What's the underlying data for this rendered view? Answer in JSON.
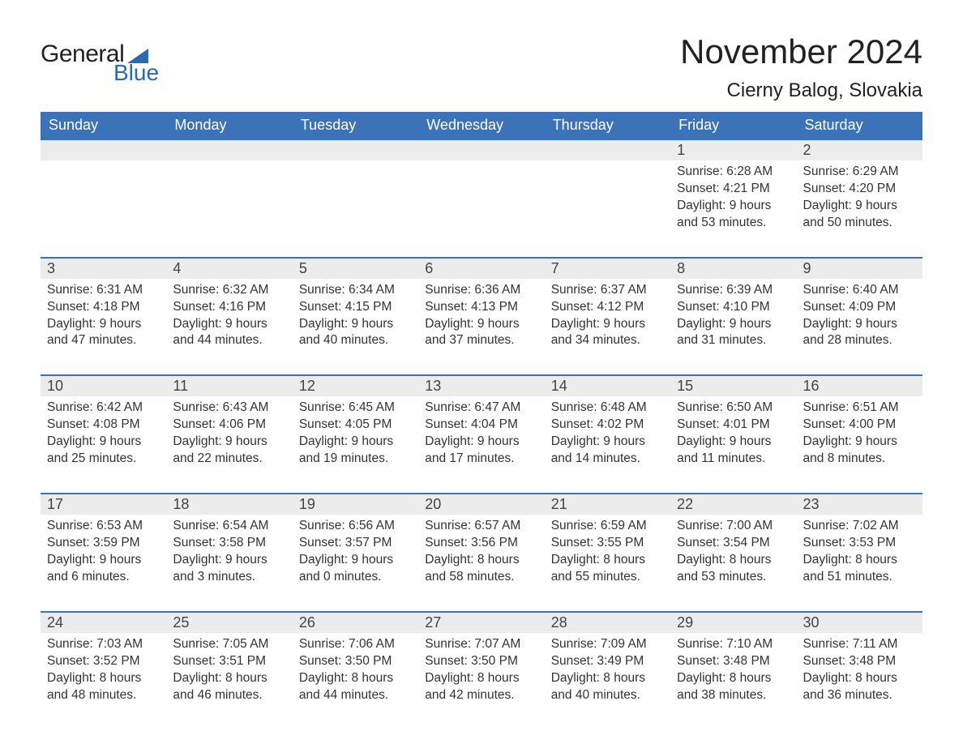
{
  "brand": {
    "part1": "General",
    "part2": "Blue",
    "flag_color": "#2b69b1"
  },
  "title": "November 2024",
  "location": "Cierny Balog, Slovakia",
  "colors": {
    "header_bg": "#3b72b8",
    "header_text": "#ffffff",
    "day_num_bg": "#ececec",
    "accent_border": "#3b72b8",
    "text": "#333333",
    "page_bg": "#ffffff"
  },
  "day_headers": [
    "Sunday",
    "Monday",
    "Tuesday",
    "Wednesday",
    "Thursday",
    "Friday",
    "Saturday"
  ],
  "weeks": [
    [
      null,
      null,
      null,
      null,
      null,
      {
        "n": "1",
        "sunrise": "Sunrise: 6:28 AM",
        "sunset": "Sunset: 4:21 PM",
        "d1": "Daylight: 9 hours",
        "d2": "and 53 minutes."
      },
      {
        "n": "2",
        "sunrise": "Sunrise: 6:29 AM",
        "sunset": "Sunset: 4:20 PM",
        "d1": "Daylight: 9 hours",
        "d2": "and 50 minutes."
      }
    ],
    [
      {
        "n": "3",
        "sunrise": "Sunrise: 6:31 AM",
        "sunset": "Sunset: 4:18 PM",
        "d1": "Daylight: 9 hours",
        "d2": "and 47 minutes."
      },
      {
        "n": "4",
        "sunrise": "Sunrise: 6:32 AM",
        "sunset": "Sunset: 4:16 PM",
        "d1": "Daylight: 9 hours",
        "d2": "and 44 minutes."
      },
      {
        "n": "5",
        "sunrise": "Sunrise: 6:34 AM",
        "sunset": "Sunset: 4:15 PM",
        "d1": "Daylight: 9 hours",
        "d2": "and 40 minutes."
      },
      {
        "n": "6",
        "sunrise": "Sunrise: 6:36 AM",
        "sunset": "Sunset: 4:13 PM",
        "d1": "Daylight: 9 hours",
        "d2": "and 37 minutes."
      },
      {
        "n": "7",
        "sunrise": "Sunrise: 6:37 AM",
        "sunset": "Sunset: 4:12 PM",
        "d1": "Daylight: 9 hours",
        "d2": "and 34 minutes."
      },
      {
        "n": "8",
        "sunrise": "Sunrise: 6:39 AM",
        "sunset": "Sunset: 4:10 PM",
        "d1": "Daylight: 9 hours",
        "d2": "and 31 minutes."
      },
      {
        "n": "9",
        "sunrise": "Sunrise: 6:40 AM",
        "sunset": "Sunset: 4:09 PM",
        "d1": "Daylight: 9 hours",
        "d2": "and 28 minutes."
      }
    ],
    [
      {
        "n": "10",
        "sunrise": "Sunrise: 6:42 AM",
        "sunset": "Sunset: 4:08 PM",
        "d1": "Daylight: 9 hours",
        "d2": "and 25 minutes."
      },
      {
        "n": "11",
        "sunrise": "Sunrise: 6:43 AM",
        "sunset": "Sunset: 4:06 PM",
        "d1": "Daylight: 9 hours",
        "d2": "and 22 minutes."
      },
      {
        "n": "12",
        "sunrise": "Sunrise: 6:45 AM",
        "sunset": "Sunset: 4:05 PM",
        "d1": "Daylight: 9 hours",
        "d2": "and 19 minutes."
      },
      {
        "n": "13",
        "sunrise": "Sunrise: 6:47 AM",
        "sunset": "Sunset: 4:04 PM",
        "d1": "Daylight: 9 hours",
        "d2": "and 17 minutes."
      },
      {
        "n": "14",
        "sunrise": "Sunrise: 6:48 AM",
        "sunset": "Sunset: 4:02 PM",
        "d1": "Daylight: 9 hours",
        "d2": "and 14 minutes."
      },
      {
        "n": "15",
        "sunrise": "Sunrise: 6:50 AM",
        "sunset": "Sunset: 4:01 PM",
        "d1": "Daylight: 9 hours",
        "d2": "and 11 minutes."
      },
      {
        "n": "16",
        "sunrise": "Sunrise: 6:51 AM",
        "sunset": "Sunset: 4:00 PM",
        "d1": "Daylight: 9 hours",
        "d2": "and 8 minutes."
      }
    ],
    [
      {
        "n": "17",
        "sunrise": "Sunrise: 6:53 AM",
        "sunset": "Sunset: 3:59 PM",
        "d1": "Daylight: 9 hours",
        "d2": "and 6 minutes."
      },
      {
        "n": "18",
        "sunrise": "Sunrise: 6:54 AM",
        "sunset": "Sunset: 3:58 PM",
        "d1": "Daylight: 9 hours",
        "d2": "and 3 minutes."
      },
      {
        "n": "19",
        "sunrise": "Sunrise: 6:56 AM",
        "sunset": "Sunset: 3:57 PM",
        "d1": "Daylight: 9 hours",
        "d2": "and 0 minutes."
      },
      {
        "n": "20",
        "sunrise": "Sunrise: 6:57 AM",
        "sunset": "Sunset: 3:56 PM",
        "d1": "Daylight: 8 hours",
        "d2": "and 58 minutes."
      },
      {
        "n": "21",
        "sunrise": "Sunrise: 6:59 AM",
        "sunset": "Sunset: 3:55 PM",
        "d1": "Daylight: 8 hours",
        "d2": "and 55 minutes."
      },
      {
        "n": "22",
        "sunrise": "Sunrise: 7:00 AM",
        "sunset": "Sunset: 3:54 PM",
        "d1": "Daylight: 8 hours",
        "d2": "and 53 minutes."
      },
      {
        "n": "23",
        "sunrise": "Sunrise: 7:02 AM",
        "sunset": "Sunset: 3:53 PM",
        "d1": "Daylight: 8 hours",
        "d2": "and 51 minutes."
      }
    ],
    [
      {
        "n": "24",
        "sunrise": "Sunrise: 7:03 AM",
        "sunset": "Sunset: 3:52 PM",
        "d1": "Daylight: 8 hours",
        "d2": "and 48 minutes."
      },
      {
        "n": "25",
        "sunrise": "Sunrise: 7:05 AM",
        "sunset": "Sunset: 3:51 PM",
        "d1": "Daylight: 8 hours",
        "d2": "and 46 minutes."
      },
      {
        "n": "26",
        "sunrise": "Sunrise: 7:06 AM",
        "sunset": "Sunset: 3:50 PM",
        "d1": "Daylight: 8 hours",
        "d2": "and 44 minutes."
      },
      {
        "n": "27",
        "sunrise": "Sunrise: 7:07 AM",
        "sunset": "Sunset: 3:50 PM",
        "d1": "Daylight: 8 hours",
        "d2": "and 42 minutes."
      },
      {
        "n": "28",
        "sunrise": "Sunrise: 7:09 AM",
        "sunset": "Sunset: 3:49 PM",
        "d1": "Daylight: 8 hours",
        "d2": "and 40 minutes."
      },
      {
        "n": "29",
        "sunrise": "Sunrise: 7:10 AM",
        "sunset": "Sunset: 3:48 PM",
        "d1": "Daylight: 8 hours",
        "d2": "and 38 minutes."
      },
      {
        "n": "30",
        "sunrise": "Sunrise: 7:11 AM",
        "sunset": "Sunset: 3:48 PM",
        "d1": "Daylight: 8 hours",
        "d2": "and 36 minutes."
      }
    ]
  ]
}
